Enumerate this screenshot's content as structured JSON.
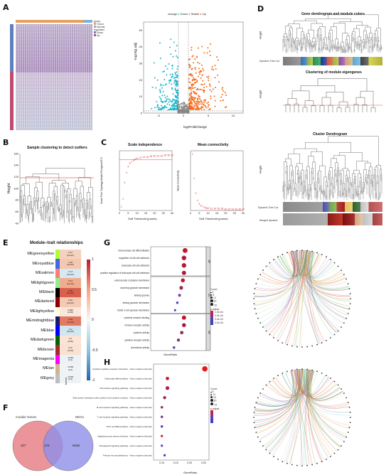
{
  "panels": {
    "A": "A",
    "B": "B",
    "C": "C",
    "D": "D",
    "E": "E",
    "F": "F",
    "G": "G",
    "H": "H"
  },
  "colors": {
    "down": "#1fb5c9",
    "stable": "#8c8c8c",
    "up": "#f26a1a",
    "heat_high": "#b51f2e",
    "heat_low": "#2166ac",
    "venn_left": "#e8838a",
    "venn_right": "#8f8ee8"
  },
  "volcano": {
    "legend_title": "change",
    "legend": [
      "Down",
      "Stable",
      "Up"
    ],
    "xlabel": "log2FoldChange",
    "ylabel": "-log10(p.adj)",
    "xticks": [
      "-5",
      "0",
      "5",
      "10"
    ],
    "yticks": [
      "0",
      "10",
      "20",
      "30",
      "40",
      "50"
    ]
  },
  "heatmap_legend": {
    "group_title": "group",
    "groups": [
      "Tumor",
      "Normal"
    ],
    "reg_title": "regulated",
    "regs": [
      "Down",
      "Up"
    ]
  },
  "clustering": {
    "title": "Sample clustering to detect outliers",
    "ylabel": "Height",
    "yticks": [
      "40",
      "60",
      "80",
      "100",
      "120",
      "140",
      "160"
    ]
  },
  "scale_independence": {
    "title": "Scale independence",
    "xlabel": "Soft Threshold (power)",
    "ylabel": "Scale Free Topology Model Fit,signed R^2",
    "xticks": [
      "0",
      "5",
      "10",
      "15",
      "20",
      "25",
      "30"
    ]
  },
  "mean_connectivity": {
    "title": "Mean connectivity",
    "xlabel": "Soft Threshold (power)",
    "ylabel": "Mean Connectivity",
    "xticks": [
      "0",
      "5",
      "10",
      "15",
      "20",
      "25",
      "30"
    ]
  },
  "gene_dendro": {
    "title": "Gene dendrogram and module colors",
    "ylabel": "Height",
    "row_label": "Dynamic Tree Cut"
  },
  "eigengene": {
    "title": "Clustering of module eigengenes",
    "ylabel": "Height"
  },
  "cluster_dendro": {
    "title": "Cluster Dendrogram",
    "ylabel": "Height",
    "row1": "Dynamic Tree Cut",
    "row2": "Merged dynamic"
  },
  "module_trait": {
    "title": "Module–trait relationships",
    "xlabel": "tumor",
    "scale_ticks": [
      "1",
      "0.5",
      "0",
      "-0.5",
      "-1"
    ],
    "modules": [
      {
        "name": "MEgreenyellow",
        "swatch": "#adff2f",
        "cell": "#f6d1bd",
        "r": "0.17",
        "p": "(6e-04)"
      },
      {
        "name": "MEroyalblue",
        "swatch": "#4169e1",
        "cell": "#f4c7b0",
        "r": "0.18",
        "p": "(3e-04)"
      },
      {
        "name": "MEsalmon",
        "swatch": "#fa8072",
        "cell": "#d7e8f1",
        "r": "-0.17",
        "p": "(6e-04)"
      },
      {
        "name": "MElightgreen",
        "swatch": "#90ee90",
        "cell": "#f0ad8e",
        "r": "0.31",
        "p": "(4e-10)"
      },
      {
        "name": "MEblack",
        "swatch": "#000000",
        "cell": "#d8604d",
        "r": "0.55",
        "p": "(5e-32)"
      },
      {
        "name": "MEdarkred",
        "swatch": "#8b0000",
        "cell": "#f5c9b4",
        "r": "0.19",
        "p": "(2e-04)"
      },
      {
        "name": "MElightyellow",
        "swatch": "#ffffe0",
        "cell": "#fbe6da",
        "r": "0.089",
        "p": "(0.08)"
      },
      {
        "name": "MEmidnightblue",
        "swatch": "#191970",
        "cell": "#e27a63",
        "r": "0.48",
        "p": "(7e-24)"
      },
      {
        "name": "MEblue",
        "swatch": "#0000ff",
        "cell": "#d2e5f0",
        "r": "-0.2",
        "p": "(8e-05)"
      },
      {
        "name": "MEdarkgreen",
        "swatch": "#006400",
        "cell": "#fbe3d5",
        "r": "0.1",
        "p": "(0.05)"
      },
      {
        "name": "MEbrown",
        "swatch": "#a52a2a",
        "cell": "#fae1d2",
        "r": "0.11",
        "p": "(0.03)"
      },
      {
        "name": "MEmagenta",
        "swatch": "#ff00ff",
        "cell": "#ecf2f6",
        "r": "-0.081",
        "p": "(0.1)"
      },
      {
        "name": "MEtan",
        "swatch": "#d2b48c",
        "cell": "#f0f3f6",
        "r": "-0.055",
        "p": "(0.3)"
      },
      {
        "name": "MEgrey",
        "swatch": "#bebebe",
        "cell": "#eef2f5",
        "r": "-0.066",
        "p": "(0.2)"
      }
    ]
  },
  "venn": {
    "left_label": "module Genes",
    "right_label": "DEGs",
    "left_only": "327",
    "both": "175",
    "right_only": "6638"
  },
  "go_dot": {
    "xlabel": "GeneRatio",
    "count_title": "Count",
    "padj_title": "p.adjust",
    "count_ticks": [
      "4",
      "8",
      "12",
      "16",
      "20"
    ],
    "padj_ticks": [
      "1.0e-04",
      "2.0e-04",
      "3.0e-04",
      "4.0e-04"
    ],
    "facets": [
      "BP",
      "CC",
      "MF"
    ],
    "terms": [
      "mononuclear cell differentiation",
      "regulation of cell-cell adhesion",
      "leukocyte cell-cell adhesion",
      "positive regulation of leukocyte cell-cell adhesion",
      "external side of plasma membrane",
      "secretory granule membrane",
      "tertiary granule",
      "tertiary granule membrane",
      "ficolin-1-rich granule membrane",
      "cytokine receptor binding",
      "immune receptor activity",
      "cytokine activity",
      "cytokine receptor activity",
      "chemokine activity"
    ]
  },
  "kegg_dot": {
    "xlabel": "GeneRatio",
    "count_title": "Count",
    "padj_title": "p.adjust",
    "xticks": [
      "0.10",
      "0.15",
      "0.20",
      "0.25"
    ],
    "count_ticks": [
      "8",
      "12",
      "16",
      "20",
      "24"
    ],
    "terms": [
      "Cytokine-cytokine receptor interaction - Homo sapiens (human)",
      "Osteoclast differentiation - Homo sapiens (human)",
      "Chemokine signaling pathway - Homo sapiens (human)",
      "Viral protein interaction with cytokine and cytokine receptor - Homo sapiens (human)",
      "B cell receptor signaling pathway - Homo sapiens (human)",
      "T cell receptor signaling pathway - Homo sapiens (human)",
      "Th17 cell differentiation - Homo sapiens (human)",
      "Staphylococcus aureus infection - Homo sapiens (human)",
      "NF-kappa B signaling pathway - Homo sapiens (human)",
      "Primary immunodeficiency - Homo sapiens (human)"
    ]
  }
}
